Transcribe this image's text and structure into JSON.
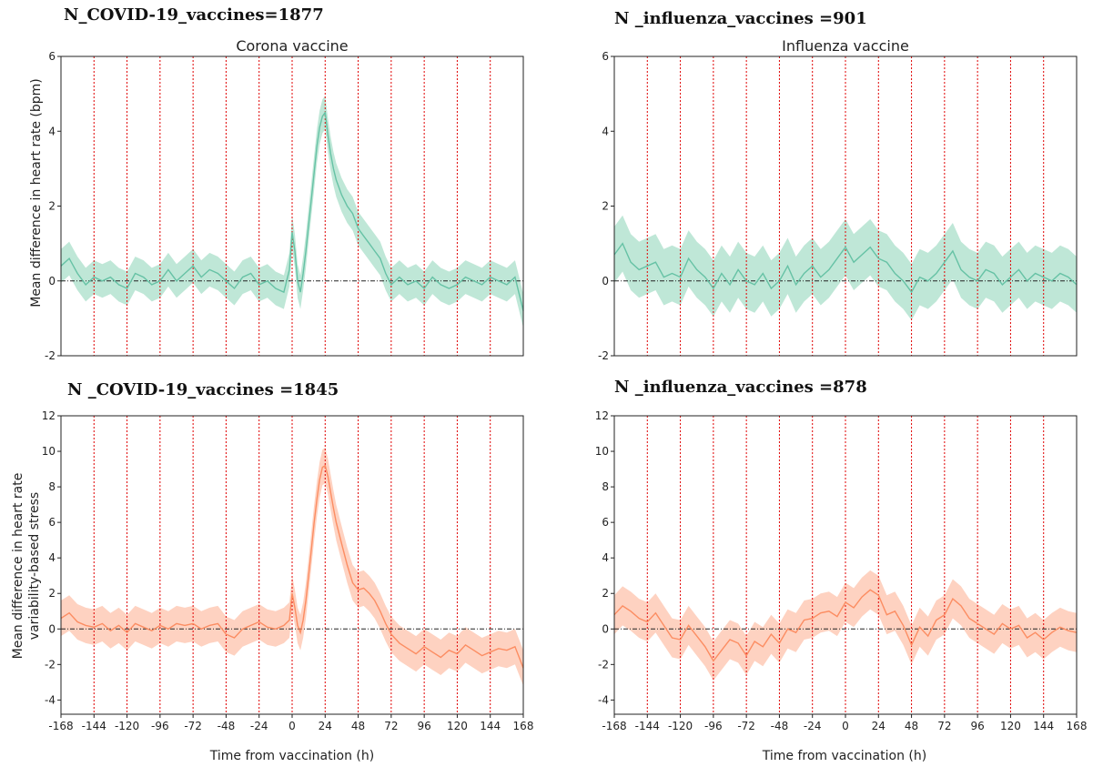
{
  "headers": {
    "top_left": "N_COVID-19_vaccines=1877",
    "top_right": "N _influenza_vaccines =901",
    "bottom_left": "N _COVID-19_vaccines =1845",
    "bottom_right": "N _influenza_vaccines =878"
  },
  "x_axis_label": "Time from vaccination (h)",
  "ylabel_hr": "Mean difference in heart rate (bpm)",
  "ylabel_stress": [
    "Mean difference in heart rate",
    "variability-based stress"
  ],
  "colors": {
    "hr_line": "#66c2a5",
    "hr_band": "#a9dfc9",
    "stress_line": "#fc8d62",
    "stress_band": "#fdc3ac",
    "vline": "#e00000",
    "zero_line": "#222222"
  },
  "chart_data": [
    {
      "id": "covid-hr",
      "type": "line",
      "title": "Corona vaccine",
      "xlabel": "",
      "ylabel": "Mean difference in heart rate (bpm)",
      "xlim": [
        -168,
        168
      ],
      "ylim": [
        -2,
        6
      ],
      "xticks": [],
      "yticks": [
        -2,
        0,
        2,
        4,
        6
      ],
      "vlines": [
        -144,
        -120,
        -96,
        -72,
        -48,
        -24,
        0,
        24,
        48,
        72,
        96,
        120,
        144
      ],
      "zero_line": true,
      "series": [
        {
          "x": [
            -168,
            -162,
            -156,
            -150,
            -144,
            -138,
            -132,
            -126,
            -120,
            -114,
            -108,
            -102,
            -96,
            -90,
            -84,
            -78,
            -72,
            -66,
            -60,
            -54,
            -48,
            -42,
            -36,
            -30,
            -24,
            -18,
            -12,
            -6,
            -2,
            0,
            2,
            4,
            6,
            8,
            10,
            12,
            14,
            16,
            18,
            20,
            22,
            24,
            26,
            28,
            30,
            32,
            36,
            40,
            44,
            48,
            52,
            56,
            60,
            64,
            68,
            72,
            78,
            84,
            90,
            96,
            102,
            108,
            114,
            120,
            126,
            132,
            138,
            144,
            150,
            156,
            162,
            168
          ],
          "y": [
            0.4,
            0.6,
            0.2,
            -0.1,
            0.1,
            0.0,
            0.1,
            -0.1,
            -0.2,
            0.2,
            0.1,
            -0.1,
            0.0,
            0.3,
            0.0,
            0.2,
            0.4,
            0.1,
            0.3,
            0.2,
            0.0,
            -0.2,
            0.1,
            0.2,
            -0.1,
            0.0,
            -0.2,
            -0.3,
            0.3,
            1.3,
            0.8,
            0.0,
            -0.3,
            0.2,
            0.8,
            1.5,
            2.2,
            2.9,
            3.6,
            4.1,
            4.4,
            4.5,
            3.9,
            3.4,
            3.0,
            2.7,
            2.3,
            2.0,
            1.8,
            1.4,
            1.2,
            1.0,
            0.8,
            0.6,
            0.2,
            -0.1,
            0.1,
            -0.1,
            0.0,
            -0.2,
            0.1,
            -0.1,
            -0.2,
            -0.1,
            0.1,
            0.0,
            -0.1,
            0.1,
            0.0,
            -0.1,
            0.1,
            -0.8
          ],
          "err": 0.45
        }
      ]
    },
    {
      "id": "flu-hr",
      "type": "line",
      "title": "Influenza vaccine",
      "xlabel": "",
      "ylabel": "",
      "xlim": [
        -168,
        168
      ],
      "ylim": [
        -2,
        6
      ],
      "xticks": [],
      "yticks": [
        -2,
        0,
        2,
        4,
        6
      ],
      "vlines": [
        -144,
        -120,
        -96,
        -72,
        -48,
        -24,
        0,
        24,
        48,
        72,
        96,
        120,
        144
      ],
      "zero_line": true,
      "series": [
        {
          "x": [
            -168,
            -162,
            -156,
            -150,
            -144,
            -138,
            -132,
            -126,
            -120,
            -114,
            -108,
            -102,
            -96,
            -90,
            -84,
            -78,
            -72,
            -66,
            -60,
            -54,
            -48,
            -42,
            -36,
            -30,
            -24,
            -18,
            -12,
            -6,
            0,
            6,
            12,
            18,
            24,
            30,
            36,
            42,
            48,
            54,
            60,
            66,
            72,
            78,
            84,
            90,
            96,
            102,
            108,
            114,
            120,
            126,
            132,
            138,
            144,
            150,
            156,
            162,
            168
          ],
          "y": [
            0.7,
            1.0,
            0.5,
            0.3,
            0.4,
            0.5,
            0.1,
            0.2,
            0.1,
            0.6,
            0.3,
            0.1,
            -0.2,
            0.2,
            -0.1,
            0.3,
            0.0,
            -0.1,
            0.2,
            -0.2,
            0.0,
            0.4,
            -0.1,
            0.2,
            0.4,
            0.1,
            0.3,
            0.6,
            0.9,
            0.5,
            0.7,
            0.9,
            0.6,
            0.5,
            0.2,
            0.0,
            -0.3,
            0.1,
            0.0,
            0.2,
            0.5,
            0.8,
            0.3,
            0.1,
            0.0,
            0.3,
            0.2,
            -0.1,
            0.1,
            0.3,
            0.0,
            0.2,
            0.1,
            0.0,
            0.2,
            0.1,
            -0.1
          ],
          "err": 0.75
        }
      ]
    },
    {
      "id": "covid-stress",
      "type": "line",
      "title": "",
      "xlabel": "Time from vaccination (h)",
      "ylabel": "Mean difference in heart rate variability-based stress",
      "xlim": [
        -168,
        168
      ],
      "ylim": [
        -4.8,
        12
      ],
      "xticks": [
        -168,
        -144,
        -120,
        -96,
        -72,
        -48,
        -24,
        0,
        24,
        48,
        72,
        96,
        120,
        144,
        168
      ],
      "yticks": [
        -4,
        -2,
        0,
        2,
        4,
        6,
        8,
        10,
        12
      ],
      "vlines": [
        -144,
        -120,
        -96,
        -72,
        -48,
        -24,
        0,
        24,
        48,
        72,
        96,
        120,
        144
      ],
      "zero_line": true,
      "series": [
        {
          "x": [
            -168,
            -162,
            -156,
            -150,
            -144,
            -138,
            -132,
            -126,
            -120,
            -114,
            -108,
            -102,
            -96,
            -90,
            -84,
            -78,
            -72,
            -66,
            -60,
            -54,
            -48,
            -42,
            -36,
            -30,
            -24,
            -18,
            -12,
            -6,
            -2,
            0,
            2,
            4,
            6,
            8,
            10,
            12,
            14,
            16,
            18,
            20,
            22,
            24,
            26,
            28,
            30,
            32,
            36,
            40,
            44,
            48,
            52,
            56,
            60,
            64,
            68,
            72,
            78,
            84,
            90,
            96,
            102,
            108,
            114,
            120,
            126,
            132,
            138,
            144,
            150,
            156,
            162,
            168
          ],
          "y": [
            0.6,
            0.9,
            0.4,
            0.2,
            0.1,
            0.3,
            -0.1,
            0.2,
            -0.2,
            0.3,
            0.1,
            -0.1,
            0.2,
            0.0,
            0.3,
            0.2,
            0.3,
            0.0,
            0.2,
            0.3,
            -0.3,
            -0.5,
            0.0,
            0.2,
            0.4,
            0.1,
            0.0,
            0.2,
            0.5,
            2.0,
            1.2,
            0.2,
            -0.2,
            0.5,
            1.6,
            3.0,
            4.5,
            6.0,
            7.3,
            8.4,
            9.1,
            9.2,
            8.6,
            7.7,
            6.8,
            6.0,
            4.8,
            3.6,
            2.6,
            2.2,
            2.3,
            2.0,
            1.6,
            1.0,
            0.3,
            -0.3,
            -0.8,
            -1.1,
            -1.4,
            -1.0,
            -1.3,
            -1.6,
            -1.2,
            -1.4,
            -0.9,
            -1.2,
            -1.5,
            -1.3,
            -1.1,
            -1.2,
            -1.0,
            -2.2
          ],
          "err": 1.0
        }
      ]
    },
    {
      "id": "flu-stress",
      "type": "line",
      "title": "",
      "xlabel": "Time from vaccination (h)",
      "ylabel": "",
      "xlim": [
        -168,
        168
      ],
      "ylim": [
        -4.8,
        12
      ],
      "xticks": [
        -168,
        -144,
        -120,
        -96,
        -72,
        -48,
        -24,
        0,
        24,
        48,
        72,
        96,
        120,
        144,
        168
      ],
      "yticks": [
        -4,
        -2,
        0,
        2,
        4,
        6,
        8,
        10,
        12
      ],
      "vlines": [
        -144,
        -120,
        -96,
        -72,
        -48,
        -24,
        0,
        24,
        48,
        72,
        96,
        120,
        144
      ],
      "zero_line": true,
      "series": [
        {
          "x": [
            -168,
            -162,
            -156,
            -150,
            -144,
            -138,
            -132,
            -126,
            -120,
            -114,
            -108,
            -102,
            -96,
            -90,
            -84,
            -78,
            -72,
            -66,
            -60,
            -54,
            -48,
            -42,
            -36,
            -30,
            -24,
            -18,
            -12,
            -6,
            0,
            6,
            12,
            18,
            24,
            30,
            36,
            42,
            48,
            54,
            60,
            66,
            72,
            78,
            84,
            90,
            96,
            102,
            108,
            114,
            120,
            126,
            132,
            138,
            144,
            150,
            156,
            162,
            168
          ],
          "y": [
            0.8,
            1.3,
            1.0,
            0.6,
            0.4,
            0.9,
            0.2,
            -0.5,
            -0.6,
            0.2,
            -0.4,
            -1.0,
            -1.8,
            -1.2,
            -0.6,
            -0.8,
            -1.5,
            -0.7,
            -1.0,
            -0.3,
            -0.8,
            0.0,
            -0.2,
            0.5,
            0.6,
            0.9,
            1.0,
            0.7,
            1.5,
            1.2,
            1.8,
            2.2,
            1.9,
            0.8,
            1.0,
            0.2,
            -0.9,
            0.1,
            -0.4,
            0.5,
            0.8,
            1.7,
            1.3,
            0.6,
            0.3,
            0.0,
            -0.3,
            0.3,
            0.0,
            0.2,
            -0.5,
            -0.2,
            -0.6,
            -0.2,
            0.1,
            -0.1,
            -0.2
          ],
          "err": 1.1
        }
      ]
    }
  ]
}
